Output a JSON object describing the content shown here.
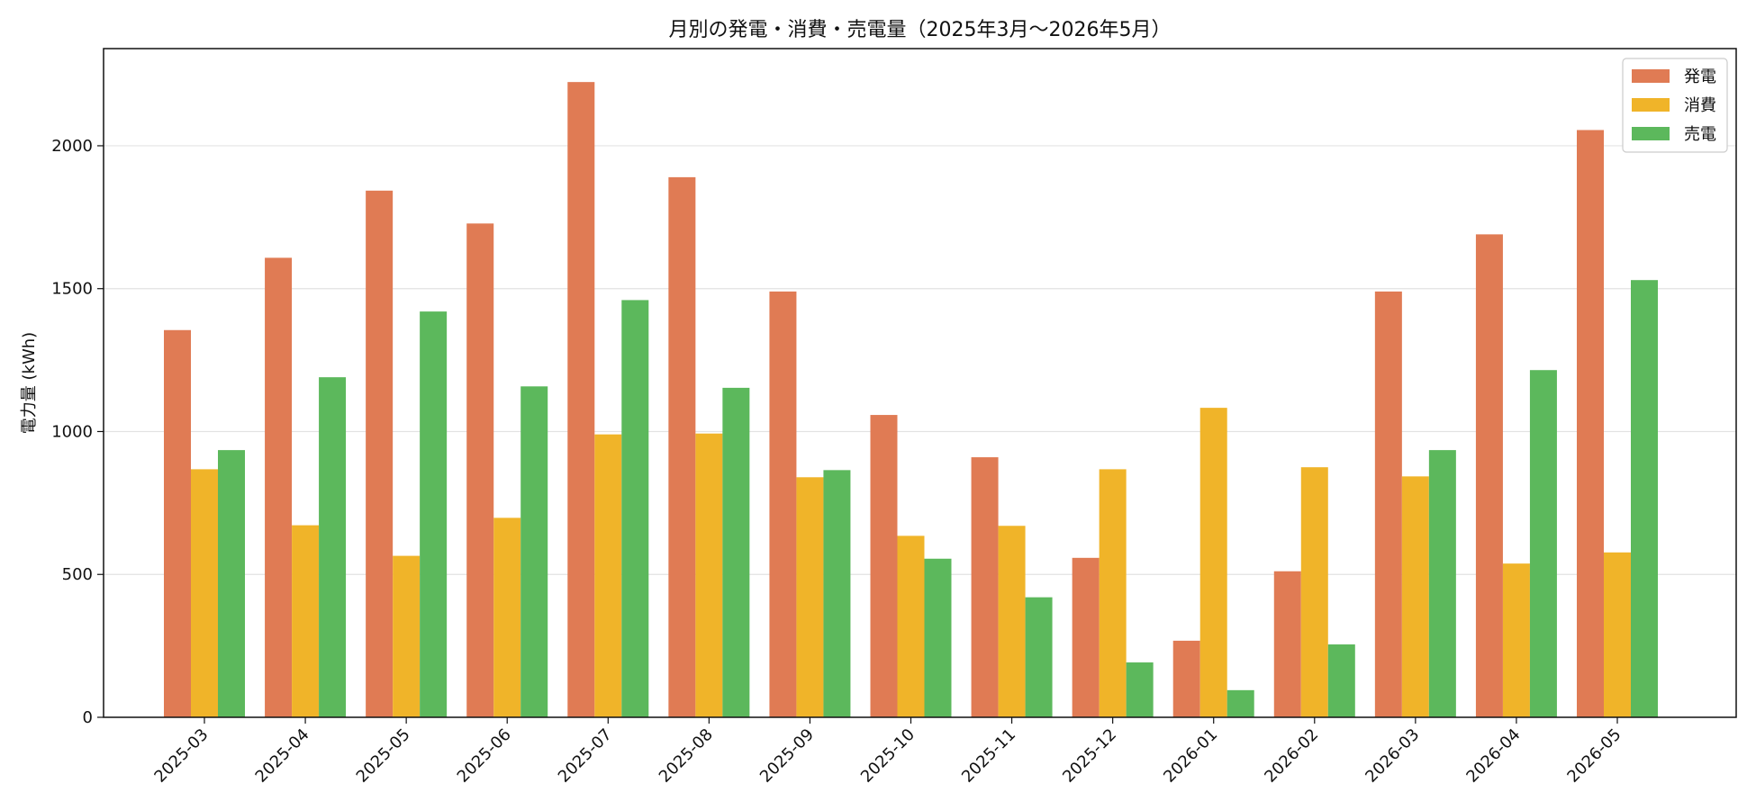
{
  "chart_data": {
    "type": "bar",
    "title": "月別の発電・消費・売電量（2025年3月〜2026年5月）",
    "xlabel": "",
    "ylabel": "電力量 (kWh)",
    "ylim": [
      0,
      2340
    ],
    "yticks": [
      0,
      500,
      1000,
      1500,
      2000
    ],
    "grid": "horizontal",
    "legend_position": "top-right",
    "categories": [
      "2025-03",
      "2025-04",
      "2025-05",
      "2025-06",
      "2025-07",
      "2025-08",
      "2025-09",
      "2025-10",
      "2025-11",
      "2025-12",
      "2026-01",
      "2026-02",
      "2026-03",
      "2026-04",
      "2026-05"
    ],
    "series": [
      {
        "name": "発電",
        "color": "#e07b54",
        "values": [
          1355,
          1608,
          1843,
          1728,
          2223,
          1890,
          1490,
          1058,
          910,
          558,
          268,
          511,
          1490,
          1690,
          2055
        ]
      },
      {
        "name": "消費",
        "color": "#f0b429",
        "values": [
          868,
          672,
          565,
          698,
          990,
          993,
          840,
          635,
          670,
          868,
          1083,
          875,
          843,
          538,
          577
        ]
      },
      {
        "name": "売電",
        "color": "#5cb85c",
        "values": [
          935,
          1190,
          1420,
          1158,
          1460,
          1153,
          865,
          555,
          420,
          192,
          95,
          255,
          935,
          1215,
          1530
        ]
      }
    ]
  }
}
